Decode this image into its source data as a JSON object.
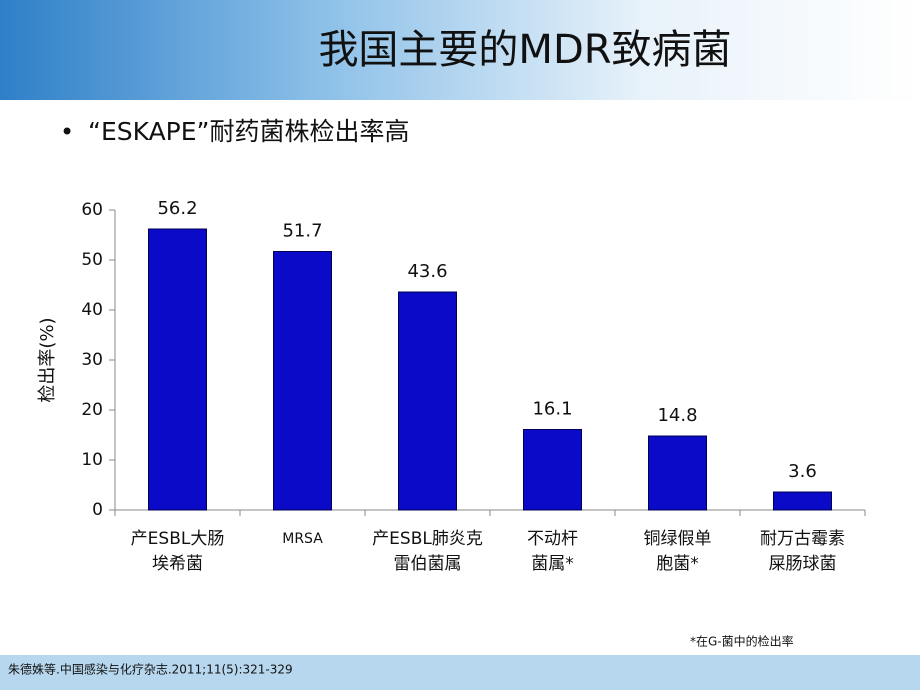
{
  "slide_title": "我国主要的MDR致病菌",
  "bullet": "“ESKAPE”耐药菌株检出率高",
  "footnote": "*在G-菌中的检出率",
  "citation": "朱德姝等.中国感染与化疗杂志.2011;11(5):321-329",
  "chart_data": {
    "type": "bar",
    "y_label": "检出率(%)",
    "categories": [
      [
        "产ESBL大肠",
        "埃希菌"
      ],
      [
        "MRSA"
      ],
      [
        "产ESBL肺炎克",
        "雷伯菌属"
      ],
      [
        "不动杆",
        "菌属*"
      ],
      [
        "铜绿假单",
        "胞菌*"
      ],
      [
        "耐万古霉素",
        "屎肠球菌"
      ]
    ],
    "values": [
      56.2,
      51.7,
      43.6,
      16.1,
      14.8,
      3.6
    ],
    "color": "#0a0ac8",
    "ylim": [
      0,
      60
    ],
    "yticks": [
      0,
      10,
      20,
      30,
      40,
      50,
      60
    ]
  }
}
